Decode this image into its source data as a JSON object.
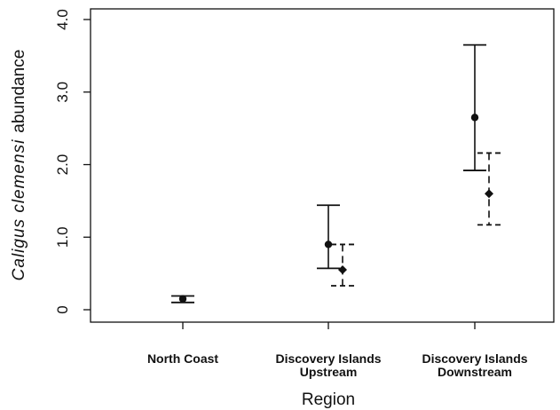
{
  "chart_data": {
    "type": "errorbar",
    "xlabel": "Region",
    "ylabel": {
      "italic": "Caligus  clemensi",
      "plain": "abundance"
    },
    "ylim": [
      0,
      4.0
    ],
    "y_ticks": [
      {
        "value": 0,
        "label": "0"
      },
      {
        "value": 1.0,
        "label": "1.0"
      },
      {
        "value": 2.0,
        "label": "2.0"
      },
      {
        "value": 3.0,
        "label": "3.0"
      },
      {
        "value": 4.0,
        "label": "4.0"
      }
    ],
    "categories": [
      {
        "lines": [
          "North Coast"
        ]
      },
      {
        "lines": [
          "Discovery Islands",
          "Upstream"
        ]
      },
      {
        "lines": [
          "Discovery Islands",
          "Downstream"
        ]
      }
    ],
    "grid": false,
    "legend": "none",
    "series": [
      {
        "marker": "circle",
        "line": "solid",
        "points": [
          {
            "category": 0,
            "y": 0.15,
            "low": 0.1,
            "high": 0.19
          },
          {
            "category": 1,
            "y": 0.9,
            "low": 0.57,
            "high": 1.44
          },
          {
            "category": 2,
            "y": 2.65,
            "low": 1.92,
            "high": 3.65
          }
        ]
      },
      {
        "marker": "diamond",
        "line": "dashed",
        "points": [
          {
            "category": 1,
            "y": 0.55,
            "low": 0.33,
            "high": 0.9
          },
          {
            "category": 2,
            "y": 1.6,
            "low": 1.17,
            "high": 2.16
          }
        ]
      }
    ]
  }
}
